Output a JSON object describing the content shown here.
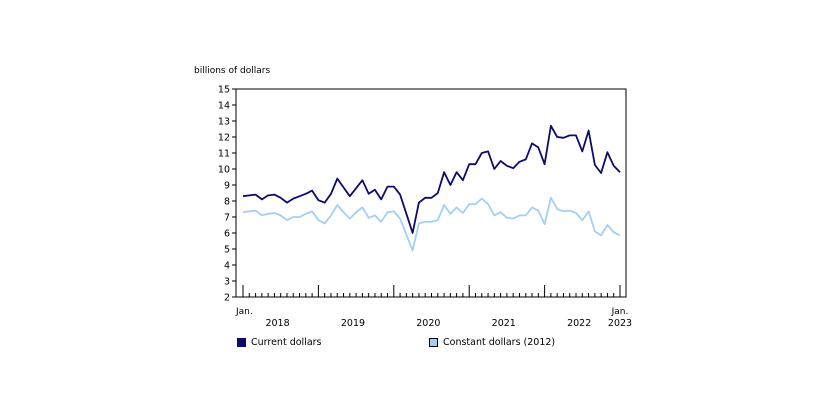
{
  "chart_data": {
    "type": "line",
    "ylabel": "billions of dollars",
    "ylim": [
      2,
      15
    ],
    "yticks": [
      "2",
      "3",
      "4",
      "5",
      "6",
      "7",
      "8",
      "9",
      "10",
      "11",
      "12",
      "13",
      "14",
      "15"
    ],
    "x_start": "2018-01",
    "x_end": "2023-01",
    "x_axis_labels": {
      "start_month": "Jan.",
      "end_month": "Jan.",
      "years": [
        "2018",
        "2019",
        "2020",
        "2021",
        "2022",
        "2023"
      ]
    },
    "grid": false,
    "legend_position": "bottom",
    "series": [
      {
        "name": "Current dollars",
        "color": "#0b0b6e",
        "values": [
          8.3,
          8.35,
          8.4,
          8.1,
          8.35,
          8.4,
          8.2,
          7.9,
          8.15,
          8.3,
          8.45,
          8.65,
          8.05,
          7.9,
          8.45,
          9.4,
          8.85,
          8.3,
          8.8,
          9.3,
          8.45,
          8.7,
          8.1,
          8.9,
          8.9,
          8.4,
          7.2,
          6.0,
          7.9,
          8.2,
          8.2,
          8.5,
          9.8,
          9.0,
          9.8,
          9.3,
          10.3,
          10.3,
          11.0,
          11.1,
          10.0,
          10.5,
          10.2,
          10.05,
          10.45,
          10.6,
          11.6,
          11.35,
          10.3,
          12.7,
          12.0,
          11.95,
          12.1,
          12.1,
          11.1,
          12.4,
          10.25,
          9.75,
          11.05,
          10.2,
          9.8
        ]
      },
      {
        "name": "Constant dollars (2012)",
        "color": "#a5cff2",
        "values": [
          7.3,
          7.35,
          7.4,
          7.1,
          7.2,
          7.25,
          7.1,
          6.8,
          7.0,
          7.0,
          7.2,
          7.35,
          6.8,
          6.6,
          7.1,
          7.75,
          7.3,
          6.9,
          7.3,
          7.6,
          6.95,
          7.1,
          6.7,
          7.3,
          7.35,
          6.9,
          5.9,
          4.9,
          6.6,
          6.7,
          6.7,
          6.8,
          7.75,
          7.2,
          7.6,
          7.25,
          7.8,
          7.8,
          8.15,
          7.8,
          7.1,
          7.3,
          6.95,
          6.9,
          7.1,
          7.1,
          7.6,
          7.4,
          6.55,
          8.2,
          7.5,
          7.35,
          7.4,
          7.25,
          6.8,
          7.35,
          6.1,
          5.85,
          6.5,
          6.05,
          5.85
        ]
      }
    ]
  }
}
